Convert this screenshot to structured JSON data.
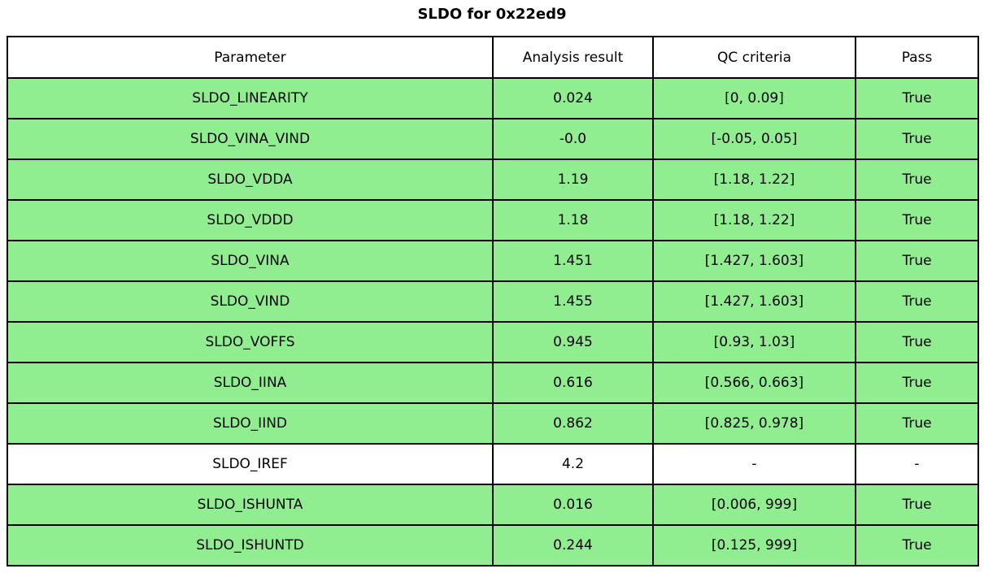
{
  "title": "SLDO for 0x22ed9",
  "colors": {
    "pass_row": "#90ee90",
    "neutral_row": "#ffffff",
    "border": "#000000"
  },
  "chart_data": {
    "type": "table",
    "title": "SLDO for 0x22ed9",
    "headers": [
      "Parameter",
      "Analysis result",
      "QC criteria",
      "Pass"
    ],
    "rows": [
      {
        "parameter": "SLDO_LINEARITY",
        "result": "0.024",
        "qc": "[0, 0.09]",
        "pass": "True",
        "highlight": true
      },
      {
        "parameter": "SLDO_VINA_VIND",
        "result": "-0.0",
        "qc": "[-0.05, 0.05]",
        "pass": "True",
        "highlight": true
      },
      {
        "parameter": "SLDO_VDDA",
        "result": "1.19",
        "qc": "[1.18, 1.22]",
        "pass": "True",
        "highlight": true
      },
      {
        "parameter": "SLDO_VDDD",
        "result": "1.18",
        "qc": "[1.18, 1.22]",
        "pass": "True",
        "highlight": true
      },
      {
        "parameter": "SLDO_VINA",
        "result": "1.451",
        "qc": "[1.427, 1.603]",
        "pass": "True",
        "highlight": true
      },
      {
        "parameter": "SLDO_VIND",
        "result": "1.455",
        "qc": "[1.427, 1.603]",
        "pass": "True",
        "highlight": true
      },
      {
        "parameter": "SLDO_VOFFS",
        "result": "0.945",
        "qc": "[0.93, 1.03]",
        "pass": "True",
        "highlight": true
      },
      {
        "parameter": "SLDO_IINA",
        "result": "0.616",
        "qc": "[0.566, 0.663]",
        "pass": "True",
        "highlight": true
      },
      {
        "parameter": "SLDO_IIND",
        "result": "0.862",
        "qc": "[0.825, 0.978]",
        "pass": "True",
        "highlight": true
      },
      {
        "parameter": "SLDO_IREF",
        "result": "4.2",
        "qc": "-",
        "pass": "-",
        "highlight": false
      },
      {
        "parameter": "SLDO_ISHUNTA",
        "result": "0.016",
        "qc": "[0.006, 999]",
        "pass": "True",
        "highlight": true
      },
      {
        "parameter": "SLDO_ISHUNTD",
        "result": "0.244",
        "qc": "[0.125, 999]",
        "pass": "True",
        "highlight": true
      }
    ]
  }
}
